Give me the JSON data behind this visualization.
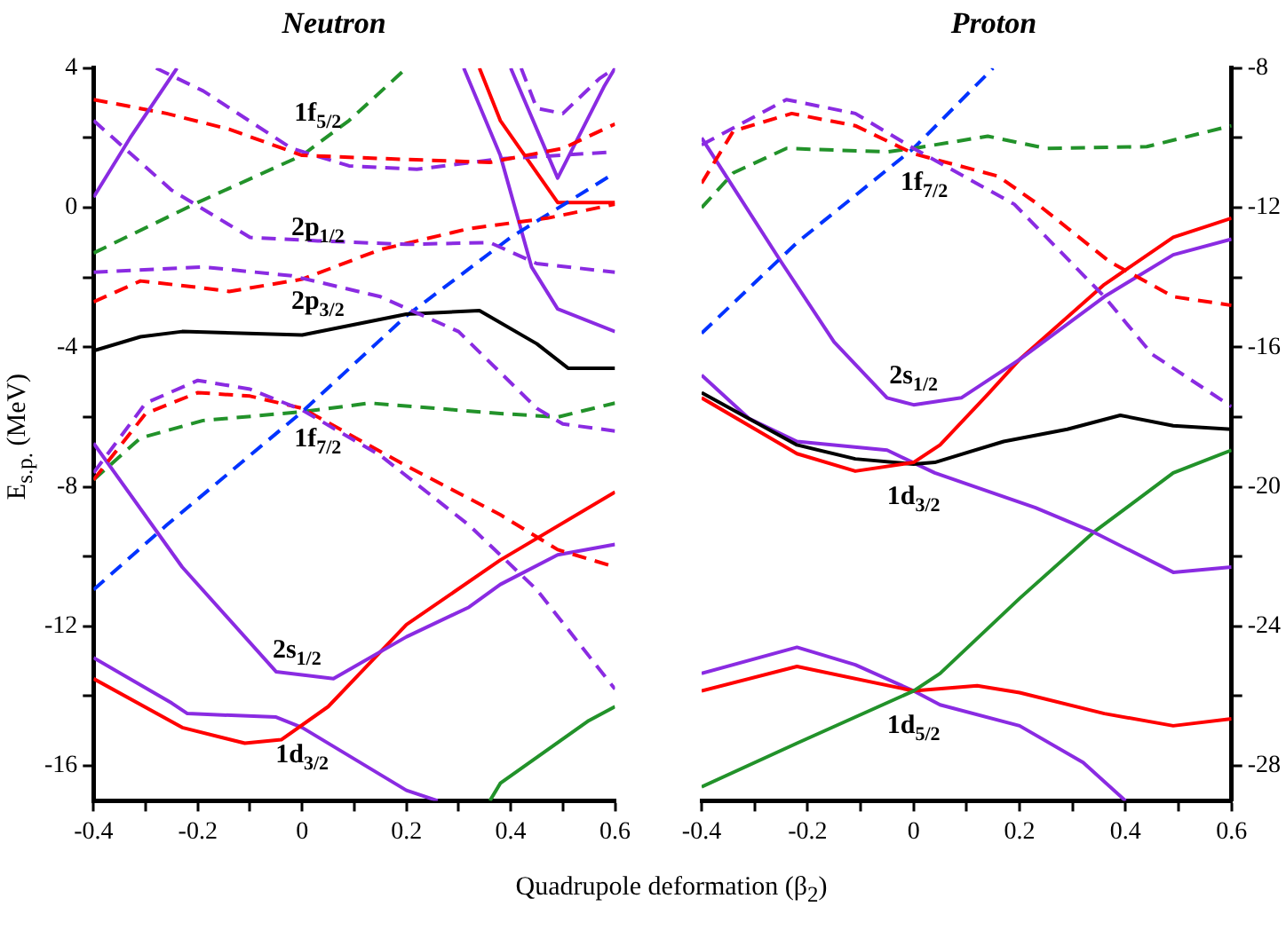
{
  "chart_data": [
    {
      "type": "line",
      "title": "Neutron",
      "xlabel": "Quadrupole deformation (β$_{2}$)",
      "ylabel": "E$_{s.p.}$ (MeV)",
      "xlim": [
        -0.4,
        0.6
      ],
      "xticks": [
        -0.4,
        {
          "value": -0.3,
          "label": null
        },
        -0.2,
        {
          "value": -0.1,
          "label": null
        },
        0,
        {
          "value": 0.1,
          "label": null
        },
        0.2,
        {
          "value": 0.3,
          "label": null
        },
        0.4,
        {
          "value": 0.5,
          "label": null
        },
        0.6
      ],
      "ylim": [
        -17,
        4
      ],
      "yticks": [
        4,
        {
          "value": 2,
          "label": null
        },
        0,
        {
          "value": -2,
          "label": null
        },
        -4,
        {
          "value": -6,
          "label": null
        },
        -8,
        {
          "value": -10,
          "label": null
        },
        -12,
        {
          "value": -14,
          "label": null
        },
        -16
      ],
      "grid": false,
      "legend": false,
      "marker": "none",
      "series": [
        {
          "color": "#8a2be2",
          "line_style": "solid",
          "x": [
            -0.4,
            -0.33,
            -0.24
          ],
          "values": [
            0.3,
            2.0,
            4
          ]
        },
        {
          "color": "#ff0000",
          "line_style": "dashed",
          "x": [
            -0.4,
            -0.26,
            -0.14,
            0,
            0.17,
            0.36,
            0.5,
            0.6
          ],
          "values": [
            3.1,
            2.7,
            2.25,
            1.5,
            1.4,
            1.3,
            1.7,
            2.4
          ]
        },
        {
          "color": "#8a2be2",
          "line_style": "dashed",
          "x": [
            -0.4,
            -0.25,
            -0.1,
            0.03,
            0.2,
            0.36,
            0.45,
            0.6
          ],
          "values": [
            2.5,
            0.5,
            -0.85,
            -0.95,
            -1.05,
            -1.0,
            -1.6,
            -1.85
          ]
        },
        {
          "color": "#8a2be2",
          "line_style": "dashed",
          "x": [
            -0.28,
            -0.19,
            -0.02,
            0.09,
            0.22,
            0.38,
            0.6
          ],
          "values": [
            4,
            3.35,
            1.7,
            1.2,
            1.1,
            1.4,
            1.6
          ]
        },
        {
          "color": "#22922a",
          "line_style": "dashed",
          "x": [
            -0.4,
            -0.2,
            0,
            0.09,
            0.2
          ],
          "values": [
            -1.3,
            0.15,
            1.5,
            2.5,
            4
          ]
        },
        {
          "color": "#8a2be2",
          "line_style": "dashed",
          "x": [
            -0.4,
            -0.19,
            -0.02,
            0.15,
            0.3,
            0.45,
            0.5,
            0.6
          ],
          "values": [
            -1.85,
            -1.7,
            -1.95,
            -2.55,
            -3.55,
            -5.75,
            -6.2,
            -6.4
          ]
        },
        {
          "color": "#ff0000",
          "line_style": "dashed",
          "x": [
            -0.4,
            -0.31,
            -0.19,
            -0.14,
            0,
            0.15,
            0.32,
            0.47,
            0.6
          ],
          "values": [
            -2.7,
            -2.1,
            -2.3,
            -2.4,
            -2.05,
            -1.2,
            -0.6,
            -0.3,
            0.1
          ]
        },
        {
          "color": "#000000",
          "line_style": "solid",
          "x": [
            -0.4,
            -0.31,
            -0.23,
            0,
            0.2,
            0.34,
            0.45,
            0.51,
            0.6
          ],
          "values": [
            -4.1,
            -3.7,
            -3.55,
            -3.65,
            -3.05,
            -2.95,
            -3.9,
            -4.6,
            -4.6
          ]
        },
        {
          "color": "#0033ff",
          "line_style": "dashed",
          "x": [
            -0.4,
            -0.26,
            0,
            0.2,
            0.4,
            0.6
          ],
          "values": [
            -10.95,
            -9.1,
            -5.85,
            -3.1,
            -0.85,
            1.0
          ]
        },
        {
          "color": "#8a2be2",
          "line_style": "dashed",
          "x": [
            -0.4,
            -0.3,
            -0.2,
            -0.1,
            0,
            0.15,
            0.32,
            0.45,
            0.6
          ],
          "values": [
            -7.6,
            -5.6,
            -4.95,
            -5.2,
            -5.8,
            -7.1,
            -9.1,
            -10.95,
            -13.8
          ]
        },
        {
          "color": "#ff0000",
          "line_style": "dashed",
          "x": [
            -0.4,
            -0.3,
            -0.2,
            -0.1,
            0,
            0.2,
            0.38,
            0.49,
            0.6
          ],
          "values": [
            -7.8,
            -5.9,
            -5.3,
            -5.4,
            -5.75,
            -7.4,
            -8.8,
            -9.8,
            -10.3
          ]
        },
        {
          "color": "#22922a",
          "line_style": "dashed",
          "x": [
            -0.4,
            -0.31,
            -0.19,
            0,
            0.13,
            0.38,
            0.49,
            0.6
          ],
          "values": [
            -7.8,
            -6.6,
            -6.1,
            -5.85,
            -5.6,
            -5.9,
            -6.0,
            -5.6
          ]
        },
        {
          "color": "#8a2be2",
          "line_style": "solid",
          "x": [
            -0.4,
            -0.23,
            -0.05,
            0.06,
            0.2,
            0.32,
            0.38,
            0.49,
            0.6
          ],
          "values": [
            -6.75,
            -10.3,
            -13.3,
            -13.5,
            -12.3,
            -11.45,
            -10.8,
            -9.95,
            -9.65
          ]
        },
        {
          "color": "#ff0000",
          "line_style": "solid",
          "x": [
            -0.4,
            -0.23,
            -0.11,
            -0.04,
            0.05,
            0.2,
            0.38,
            0.6
          ],
          "values": [
            -13.5,
            -14.9,
            -15.35,
            -15.25,
            -14.3,
            -11.95,
            -10.1,
            -8.15
          ]
        },
        {
          "color": "#8a2be2",
          "line_style": "solid",
          "x": [
            -0.4,
            -0.25,
            -0.22,
            -0.05,
            0,
            0.2,
            0.26
          ],
          "values": [
            -12.9,
            -14.2,
            -14.5,
            -14.6,
            -14.9,
            -16.7,
            -17
          ]
        },
        {
          "color": "#22922a",
          "line_style": "solid",
          "x": [
            0.36,
            0.38,
            0.55,
            0.6
          ],
          "values": [
            -17,
            -16.5,
            -14.7,
            -14.3
          ]
        },
        {
          "color": "#ff0000",
          "line_style": "solid",
          "x": [
            0.34,
            0.38,
            0.49,
            0.6
          ],
          "values": [
            4,
            2.5,
            0.15,
            0.15
          ]
        },
        {
          "color": "#8a2be2",
          "line_style": "solid",
          "x": [
            0.4,
            0.49,
            0.58,
            0.6
          ],
          "values": [
            4,
            0.85,
            3.5,
            4
          ]
        },
        {
          "color": "#8a2be2",
          "line_style": "solid",
          "x": [
            0.31,
            0.38,
            0.44,
            0.49,
            0.6
          ],
          "values": [
            4,
            1.5,
            -1.7,
            -2.9,
            -3.55
          ]
        },
        {
          "color": "#8a2be2",
          "line_style": "dashed",
          "x": [
            0.42,
            0.45,
            0.5,
            0.57,
            0.6
          ],
          "values": [
            4,
            2.85,
            2.7,
            3.7,
            4
          ]
        }
      ],
      "annotations": [
        "1f$_{5/2}$",
        "2p$_{1/2}$",
        "2p$_{3/2}$",
        "1f$_{7/2}$",
        "2s$_{1/2}$",
        "1d$_{3/2}$"
      ]
    },
    {
      "type": "line",
      "title": "Proton",
      "xlim": [
        -0.4,
        0.6
      ],
      "xticks": [
        -0.4,
        {
          "value": -0.3,
          "label": null
        },
        -0.2,
        {
          "value": -0.1,
          "label": null
        },
        0,
        {
          "value": 0.1,
          "label": null
        },
        0.2,
        {
          "value": 0.3,
          "label": null
        },
        0.4,
        {
          "value": 0.5,
          "label": null
        },
        0.6
      ],
      "y2lim": [
        -29,
        -8
      ],
      "y2ticks": [
        -8,
        {
          "value": -10,
          "label": null
        },
        -12,
        {
          "value": -14,
          "label": null
        },
        -16,
        {
          "value": -18,
          "label": null
        },
        -20,
        {
          "value": -22,
          "label": null
        },
        -24,
        {
          "value": -26,
          "label": null
        },
        -28
      ],
      "grid": false,
      "legend": false,
      "marker": "none",
      "series": [
        {
          "axis": "y2",
          "color": "#8a2be2",
          "line_style": "dashed",
          "x": [
            -0.4,
            -0.24,
            -0.11,
            0,
            0.19,
            0.36,
            0.45,
            0.6
          ],
          "values": [
            -10.2,
            -8.9,
            -9.3,
            -10.3,
            -11.9,
            -14.55,
            -16.2,
            -17.7
          ]
        },
        {
          "axis": "y2",
          "color": "#ff0000",
          "line_style": "dashed",
          "x": [
            -0.4,
            -0.34,
            -0.23,
            -0.11,
            0,
            0.16,
            0.23,
            0.37,
            0.49,
            0.6
          ],
          "values": [
            -11.3,
            -9.8,
            -9.3,
            -9.65,
            -10.45,
            -11.1,
            -11.85,
            -13.55,
            -14.55,
            -14.8
          ]
        },
        {
          "axis": "y2",
          "color": "#22922a",
          "line_style": "dashed",
          "x": [
            -0.4,
            -0.34,
            -0.24,
            -0.05,
            0,
            0.14,
            0.25,
            0.44,
            0.6
          ],
          "values": [
            -12.0,
            -11.0,
            -10.3,
            -10.4,
            -10.3,
            -9.95,
            -10.3,
            -10.25,
            -9.65
          ]
        },
        {
          "axis": "y2",
          "color": "#0033ff",
          "line_style": "dashed",
          "x": [
            -0.4,
            -0.22,
            0,
            0.15
          ],
          "values": [
            -15.6,
            -13.0,
            -10.3,
            -8
          ]
        },
        {
          "axis": "y2",
          "color": "#8a2be2",
          "line_style": "solid",
          "x": [
            -0.4,
            -0.25,
            -0.15,
            -0.05,
            0,
            0.09,
            0.2,
            0.36,
            0.49,
            0.6
          ],
          "values": [
            -10.0,
            -13.55,
            -15.85,
            -17.45,
            -17.65,
            -17.45,
            -16.35,
            -14.55,
            -13.35,
            -12.9
          ]
        },
        {
          "axis": "y2",
          "color": "#ff0000",
          "line_style": "solid",
          "x": [
            -0.4,
            -0.22,
            -0.11,
            0,
            0.05,
            0.14,
            0.2,
            0.36,
            0.49,
            0.6
          ],
          "values": [
            -17.45,
            -19.05,
            -19.55,
            -19.3,
            -18.8,
            -17.35,
            -16.35,
            -14.2,
            -12.85,
            -12.3
          ]
        },
        {
          "axis": "y2",
          "color": "#000000",
          "line_style": "solid",
          "x": [
            -0.4,
            -0.22,
            -0.11,
            0,
            0.04,
            0.17,
            0.29,
            0.39,
            0.49,
            0.6
          ],
          "values": [
            -17.3,
            -18.8,
            -19.2,
            -19.35,
            -19.3,
            -18.7,
            -18.35,
            -17.95,
            -18.25,
            -18.35
          ]
        },
        {
          "axis": "y2",
          "color": "#8a2be2",
          "line_style": "solid",
          "x": [
            -0.4,
            -0.31,
            -0.22,
            -0.05,
            0.04,
            0.23,
            0.34,
            0.49,
            0.6
          ],
          "values": [
            -16.8,
            -18.05,
            -18.7,
            -18.95,
            -19.6,
            -20.6,
            -21.3,
            -22.45,
            -22.3
          ]
        },
        {
          "axis": "y2",
          "color": "#22922a",
          "line_style": "solid",
          "x": [
            -0.4,
            -0.22,
            0,
            0.05,
            0.2,
            0.34,
            0.49,
            0.6
          ],
          "values": [
            -28.6,
            -27.35,
            -25.85,
            -25.35,
            -23.2,
            -21.3,
            -19.6,
            -18.95
          ]
        },
        {
          "axis": "y2",
          "color": "#ff0000",
          "line_style": "solid",
          "x": [
            -0.4,
            -0.22,
            0,
            0.12,
            0.2,
            0.36,
            0.49,
            0.6
          ],
          "values": [
            -25.85,
            -25.15,
            -25.85,
            -25.7,
            -25.9,
            -26.5,
            -26.85,
            -26.65
          ]
        },
        {
          "axis": "y2",
          "color": "#8a2be2",
          "line_style": "solid",
          "x": [
            -0.4,
            -0.22,
            -0.11,
            0,
            0.05,
            0.2,
            0.32,
            0.4
          ],
          "values": [
            -25.35,
            -24.6,
            -25.1,
            -25.85,
            -26.25,
            -26.85,
            -27.9,
            -29
          ]
        }
      ],
      "annotations": [
        "1f$_{7/2}$",
        "2s$_{1/2}$",
        "1d$_{3/2}$",
        "1d$_{5/2}$"
      ]
    }
  ]
}
